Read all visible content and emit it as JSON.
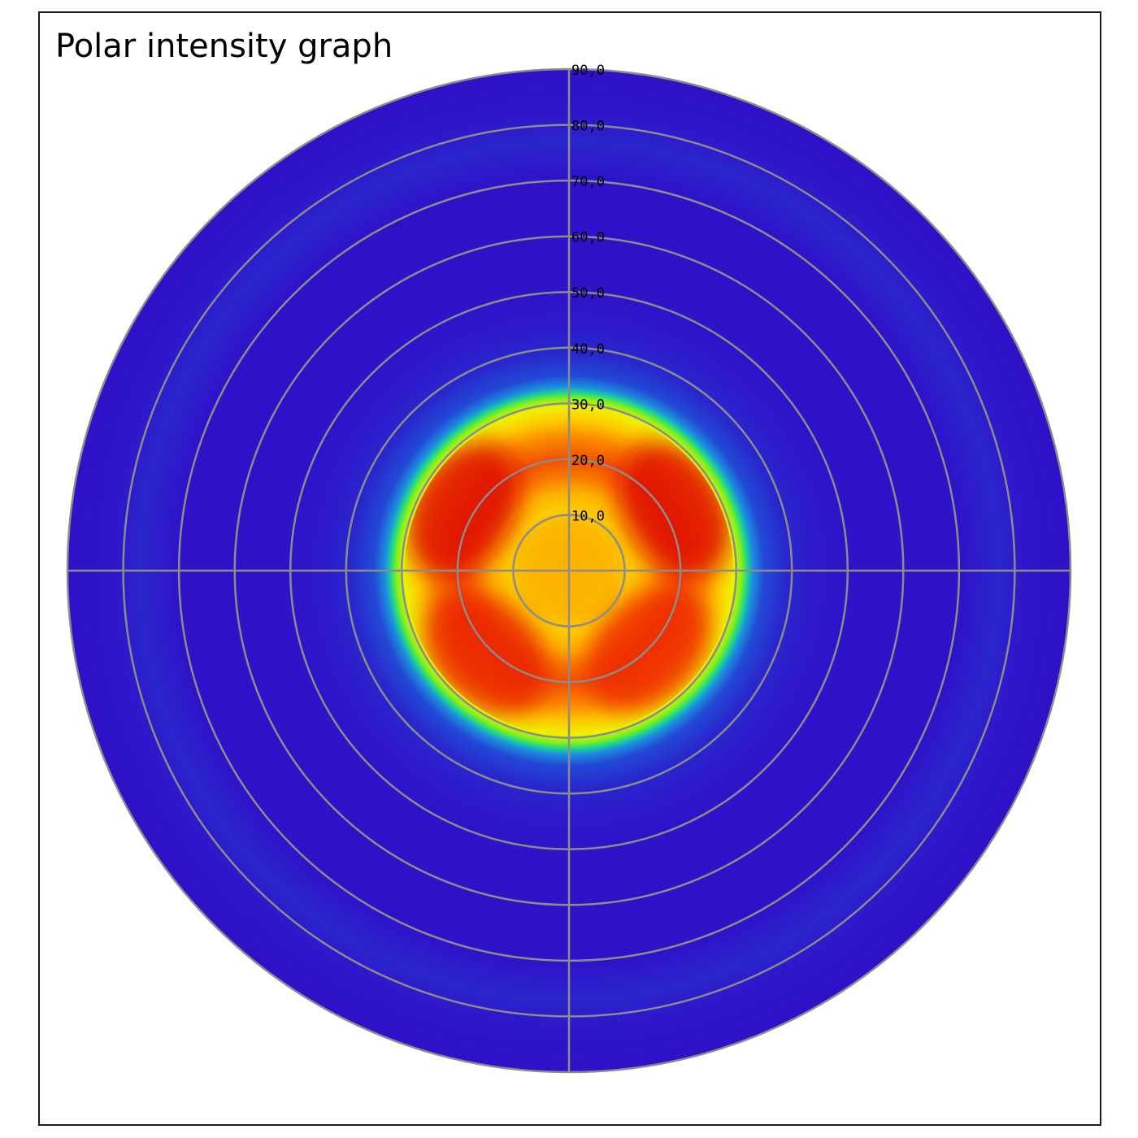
{
  "chart_data": {
    "type": "heatmap",
    "subtype": "polar",
    "title": "Polar intensity graph",
    "radial_axis": {
      "unit": "degrees",
      "range": [
        0,
        90
      ],
      "ticks": [
        10,
        20,
        30,
        40,
        50,
        60,
        70,
        80,
        90
      ],
      "tick_labels": [
        "10,0",
        "20,0",
        "30,0",
        "40,0",
        "50,0",
        "60,0",
        "70,0",
        "80,0",
        "90,0"
      ]
    },
    "crosshair_axes": [
      "horizontal",
      "vertical"
    ],
    "grid": true,
    "colormap": [
      "#2f12c8",
      "#2437d0",
      "#1e73e0",
      "#18b8d8",
      "#1ddc80",
      "#7ef01c",
      "#ecfa00",
      "#fdcb00",
      "#fa8a00",
      "#ee2a00",
      "#d80000"
    ],
    "radial_profile": [
      {
        "r": 0,
        "level": 0.74
      },
      {
        "r": 8,
        "level": 0.73
      },
      {
        "r": 11,
        "level": 0.7
      },
      {
        "r": 14,
        "level": 0.74
      },
      {
        "r": 17,
        "level": 0.82
      },
      {
        "r": 20,
        "level": 0.86
      },
      {
        "r": 24,
        "level": 0.8
      },
      {
        "r": 27,
        "level": 0.7
      },
      {
        "r": 29.5,
        "level": 0.62
      },
      {
        "r": 31,
        "level": 0.5
      },
      {
        "r": 32,
        "level": 0.38
      },
      {
        "r": 33,
        "level": 0.24
      },
      {
        "r": 35,
        "level": 0.13
      },
      {
        "r": 39,
        "level": 0.06
      },
      {
        "r": 44,
        "level": 0.02
      },
      {
        "r": 52,
        "level": 0.0
      },
      {
        "r": 70,
        "level": 0.0
      },
      {
        "r": 77,
        "level": 0.05
      },
      {
        "r": 82,
        "level": 0.01
      },
      {
        "r": 90,
        "level": 0.0
      }
    ],
    "hotspots": [
      {
        "azimuth_deg": 60,
        "r": 22,
        "level": 0.97
      },
      {
        "azimuth_deg": 300,
        "r": 22,
        "level": 0.97
      },
      {
        "azimuth_deg": 135,
        "r": 20,
        "level": 0.9
      },
      {
        "azimuth_deg": 225,
        "r": 21,
        "level": 0.92
      }
    ]
  }
}
